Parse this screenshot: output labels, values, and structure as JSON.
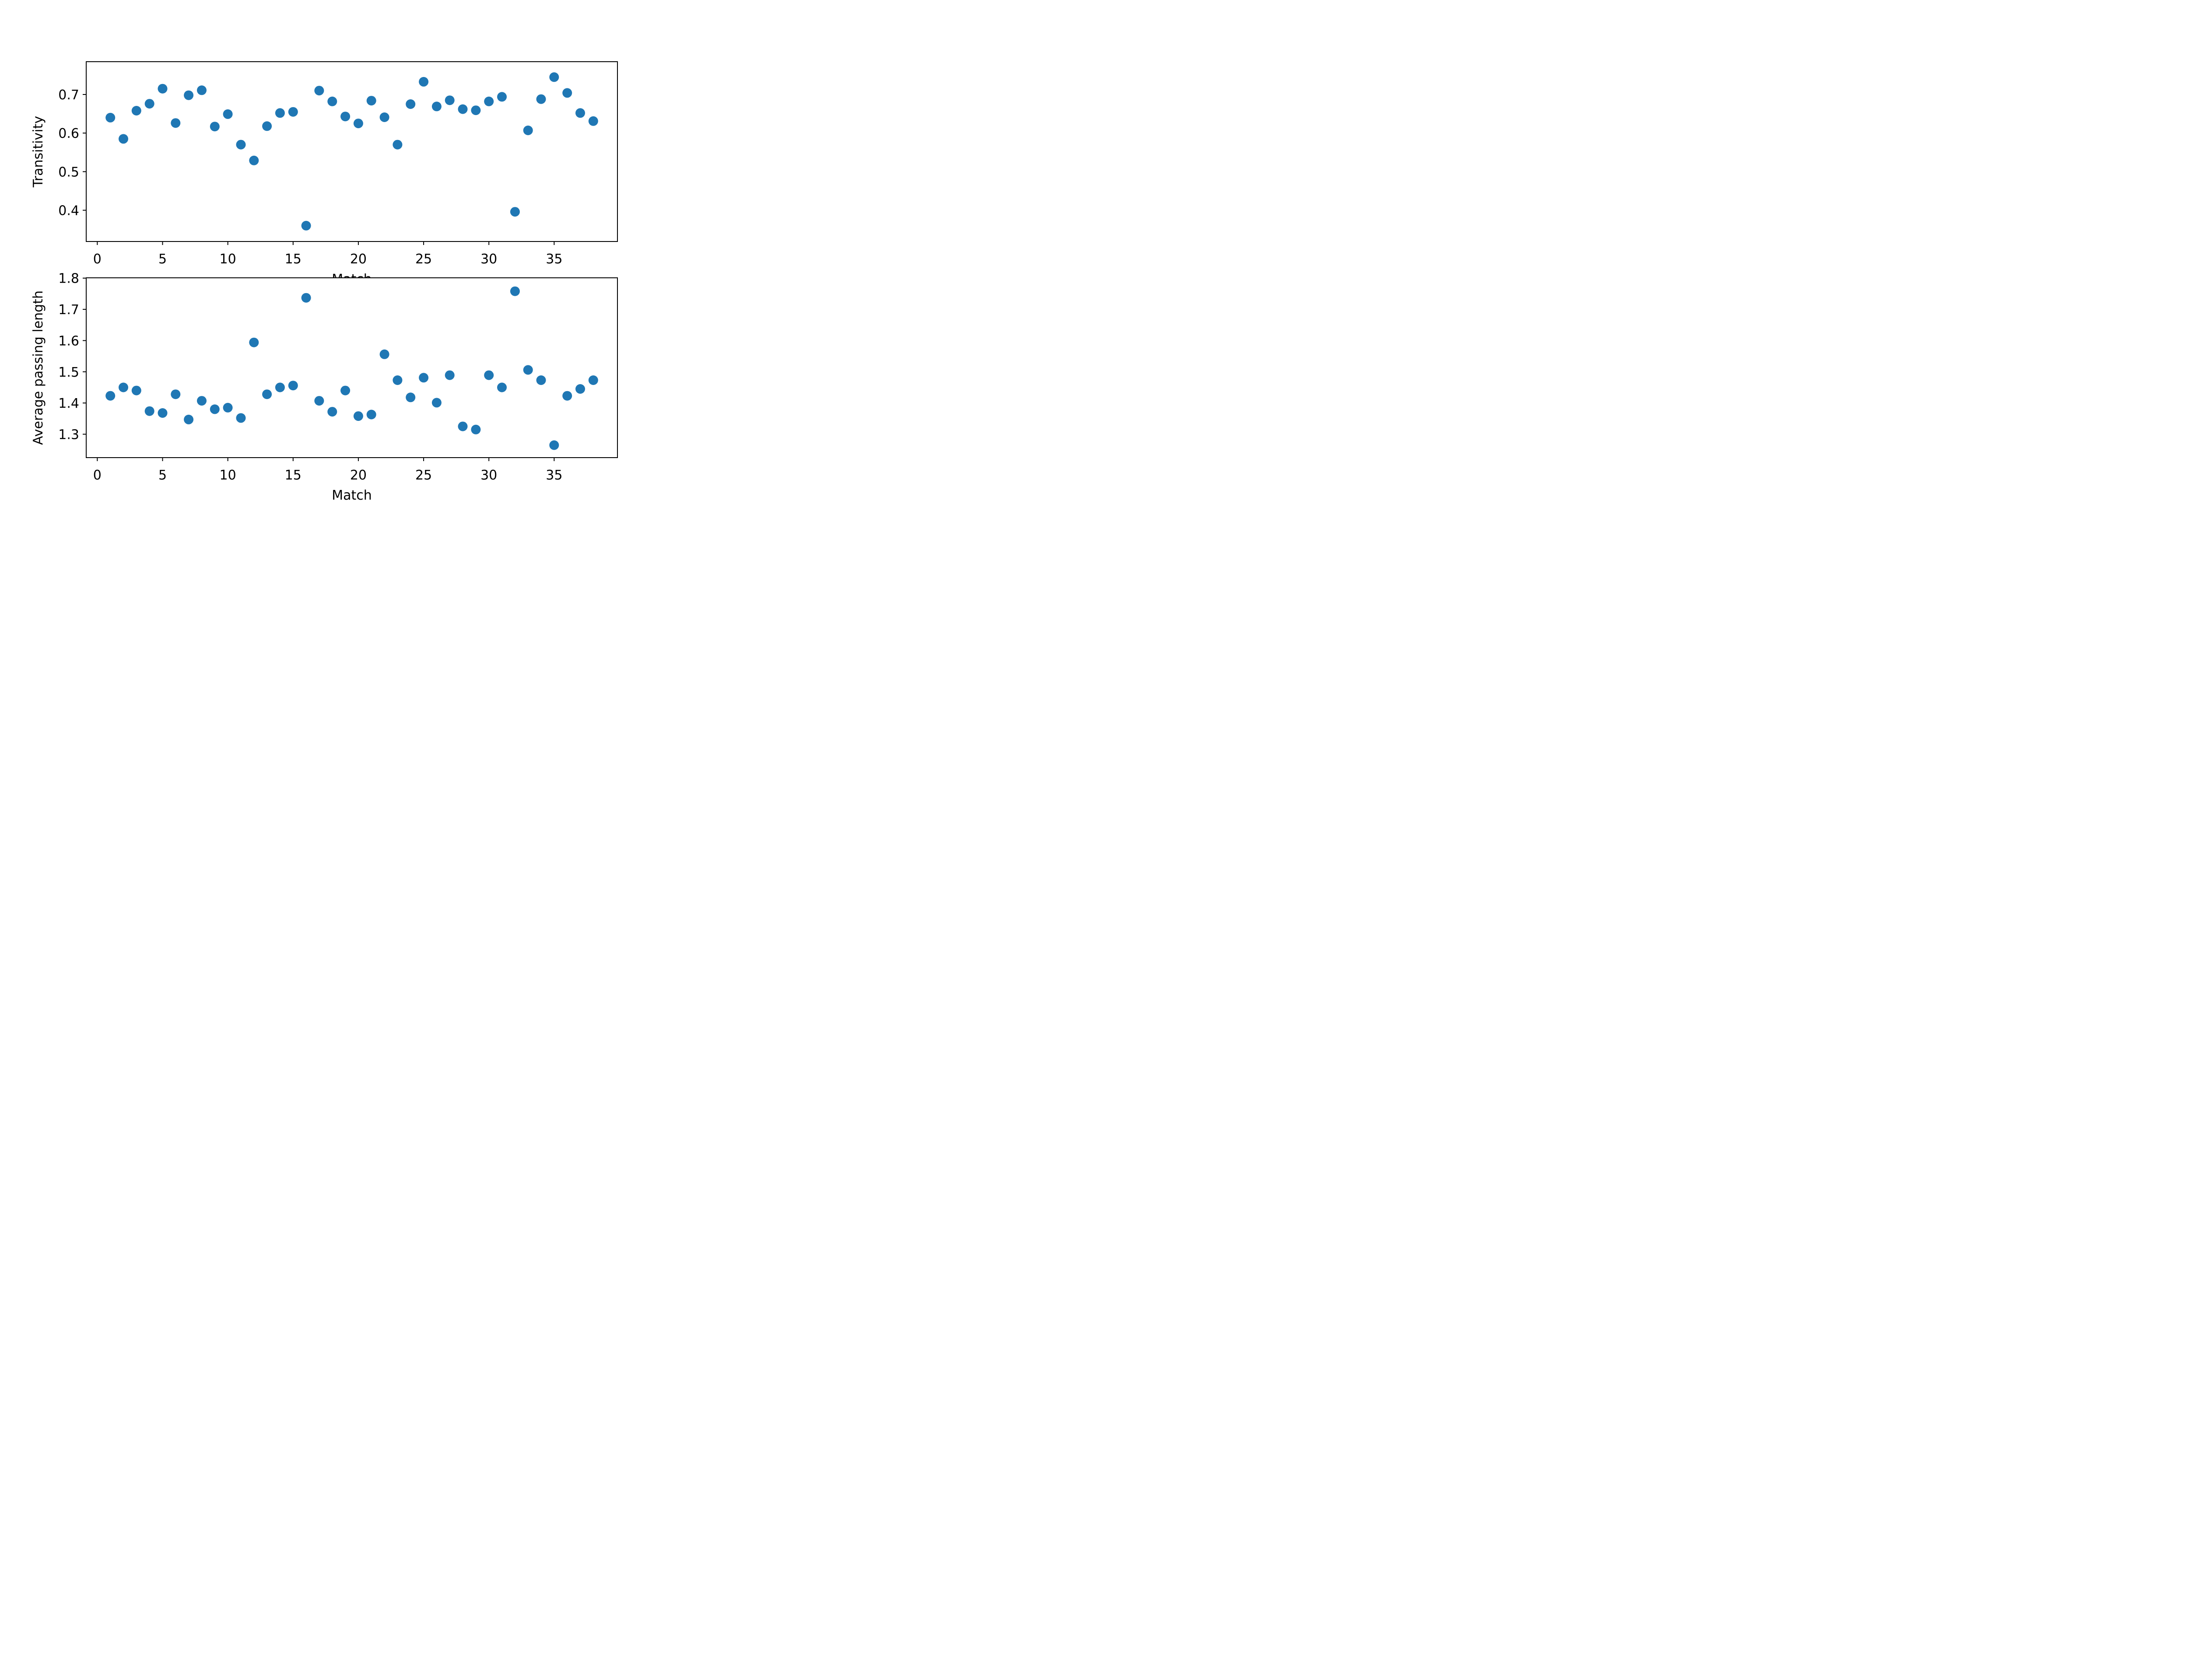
{
  "figure": {
    "background": "#ffffff",
    "marker_color": "#1f77b4",
    "axes_color": "#000000"
  },
  "chart_data": [
    {
      "type": "scatter",
      "xlabel": "Match",
      "ylabel": "Transitivity",
      "xlim": [
        -0.85,
        39.85
      ],
      "ylim": [
        0.319,
        0.785
      ],
      "xticks": [
        0,
        5,
        10,
        15,
        20,
        25,
        30,
        35
      ],
      "xtick_labels": [
        "0",
        "5",
        "10",
        "15",
        "20",
        "25",
        "30",
        "35"
      ],
      "yticks": [
        0.4,
        0.5,
        0.6,
        0.7
      ],
      "ytick_labels": [
        "0.4",
        "0.5",
        "0.6",
        "0.7"
      ],
      "grid": false,
      "x": [
        1,
        2,
        3,
        4,
        5,
        6,
        7,
        8,
        9,
        10,
        11,
        12,
        13,
        14,
        15,
        16,
        17,
        18,
        19,
        20,
        21,
        22,
        23,
        24,
        25,
        26,
        27,
        28,
        29,
        30,
        31,
        32,
        33,
        34,
        35,
        36,
        37,
        38
      ],
      "y": [
        0.64,
        0.585,
        0.658,
        0.676,
        0.715,
        0.626,
        0.698,
        0.711,
        0.617,
        0.649,
        0.57,
        0.529,
        0.618,
        0.652,
        0.655,
        0.36,
        0.71,
        0.682,
        0.643,
        0.625,
        0.684,
        0.641,
        0.57,
        0.675,
        0.733,
        0.669,
        0.685,
        0.662,
        0.659,
        0.682,
        0.694,
        0.396,
        0.607,
        0.688,
        0.745,
        0.704,
        0.652,
        0.631
      ]
    },
    {
      "type": "scatter",
      "xlabel": "Match",
      "ylabel": "Average passing length",
      "xlim": [
        -0.85,
        39.85
      ],
      "ylim": [
        1.225,
        1.801
      ],
      "xticks": [
        0,
        5,
        10,
        15,
        20,
        25,
        30,
        35
      ],
      "xtick_labels": [
        "0",
        "5",
        "10",
        "15",
        "20",
        "25",
        "30",
        "35"
      ],
      "yticks": [
        1.3,
        1.4,
        1.5,
        1.6,
        1.7,
        1.8
      ],
      "ytick_labels": [
        "1.3",
        "1.4",
        "1.5",
        "1.6",
        "1.7",
        "1.8"
      ],
      "grid": false,
      "x": [
        1,
        2,
        3,
        4,
        5,
        6,
        7,
        8,
        9,
        10,
        11,
        12,
        13,
        14,
        15,
        16,
        17,
        18,
        19,
        20,
        21,
        22,
        23,
        24,
        25,
        26,
        27,
        28,
        29,
        30,
        31,
        32,
        33,
        34,
        35,
        36,
        37,
        38
      ],
      "y": [
        1.423,
        1.45,
        1.44,
        1.374,
        1.368,
        1.428,
        1.347,
        1.407,
        1.38,
        1.385,
        1.352,
        1.594,
        1.428,
        1.45,
        1.456,
        1.737,
        1.407,
        1.372,
        1.44,
        1.358,
        1.363,
        1.556,
        1.473,
        1.418,
        1.481,
        1.401,
        1.489,
        1.325,
        1.315,
        1.489,
        1.45,
        1.758,
        1.506,
        1.473,
        1.265,
        1.423,
        1.445,
        1.473
      ]
    }
  ]
}
